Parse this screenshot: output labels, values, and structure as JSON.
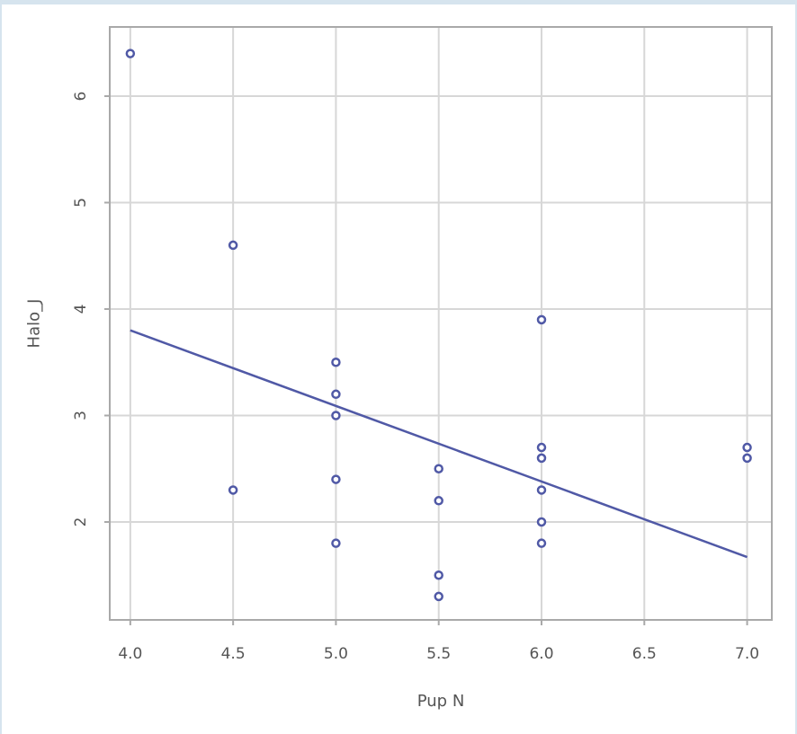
{
  "chart_data": {
    "type": "scatter",
    "title": "",
    "xlabel": "Pup  N",
    "ylabel": "Halo_J",
    "xlim": [
      3.9,
      7.12
    ],
    "ylim": [
      1.08,
      6.65
    ],
    "x_ticks": [
      4.0,
      4.5,
      5.0,
      5.5,
      6.0,
      6.5,
      7.0
    ],
    "x_tick_labels": [
      "4.0",
      "4.5",
      "5.0",
      "5.5",
      "6.0",
      "6.5",
      "7.0"
    ],
    "y_ticks": [
      2,
      3,
      4,
      5,
      6
    ],
    "y_tick_labels": [
      "2",
      "3",
      "4",
      "5",
      "6"
    ],
    "grid": true,
    "points": [
      {
        "x": 4.0,
        "y": 6.4
      },
      {
        "x": 4.5,
        "y": 4.6
      },
      {
        "x": 4.5,
        "y": 2.3
      },
      {
        "x": 5.0,
        "y": 3.5
      },
      {
        "x": 5.0,
        "y": 3.2
      },
      {
        "x": 5.0,
        "y": 3.0
      },
      {
        "x": 5.0,
        "y": 2.4
      },
      {
        "x": 5.0,
        "y": 1.8
      },
      {
        "x": 5.5,
        "y": 2.5
      },
      {
        "x": 5.5,
        "y": 2.2
      },
      {
        "x": 5.5,
        "y": 1.5
      },
      {
        "x": 5.5,
        "y": 1.3
      },
      {
        "x": 6.0,
        "y": 3.9
      },
      {
        "x": 6.0,
        "y": 2.7
      },
      {
        "x": 6.0,
        "y": 2.6
      },
      {
        "x": 6.0,
        "y": 2.3
      },
      {
        "x": 6.0,
        "y": 2.0
      },
      {
        "x": 6.0,
        "y": 1.8
      },
      {
        "x": 7.0,
        "y": 2.7
      },
      {
        "x": 7.0,
        "y": 2.6
      }
    ],
    "trend_line": {
      "x1": 4.0,
      "y1": 3.8,
      "x2": 7.0,
      "y2": 1.67
    },
    "colors": {
      "point": "#5059a6",
      "line": "#5059a6",
      "grid": "#d7d7d7",
      "frame": "#a9a9a9"
    }
  }
}
